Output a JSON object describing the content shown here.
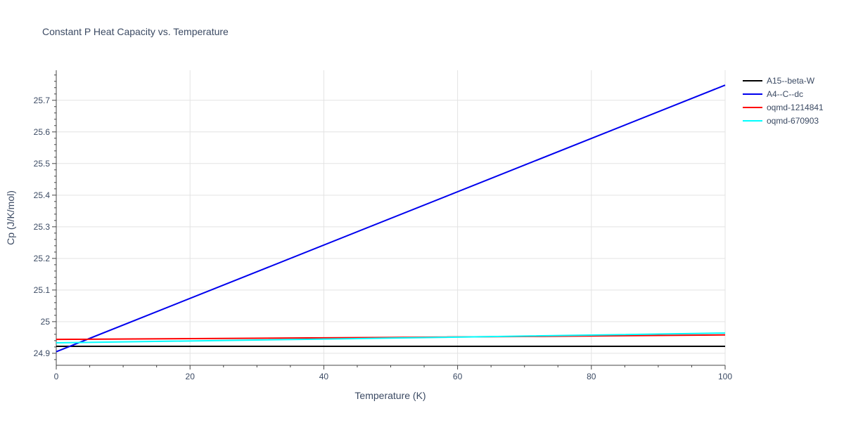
{
  "chart_data": {
    "type": "line",
    "title": "Constant P Heat Capacity vs. Temperature",
    "xlabel": "Temperature (K)",
    "ylabel": "Cp (J/K/mol)",
    "xlim": [
      0,
      100
    ],
    "ylim": [
      24.862,
      25.795
    ],
    "x_ticks": [
      0,
      20,
      40,
      60,
      80,
      100
    ],
    "y_ticks": [
      24.9,
      25,
      25.1,
      25.2,
      25.3,
      25.4,
      25.5,
      25.6,
      25.7
    ],
    "y_tick_labels": [
      "24.9",
      "25",
      "25.1",
      "25.2",
      "25.3",
      "25.4",
      "25.5",
      "25.6",
      "25.7"
    ],
    "grid": true,
    "legend_position": "right",
    "series": [
      {
        "name": "A15--beta-W",
        "color": "#000000",
        "x": [
          0,
          100
        ],
        "y": [
          24.922,
          24.922
        ]
      },
      {
        "name": "A4--C--dc",
        "color": "#0000ee",
        "x": [
          0,
          100
        ],
        "y": [
          24.905,
          25.748
        ]
      },
      {
        "name": "oqmd-1214841",
        "color": "#ff0000",
        "x": [
          0,
          50,
          100
        ],
        "y": [
          24.944,
          24.95,
          24.958
        ]
      },
      {
        "name": "oqmd-670903",
        "color": "#00ffff",
        "x": [
          0,
          50,
          100
        ],
        "y": [
          24.933,
          24.948,
          24.964
        ]
      }
    ]
  }
}
